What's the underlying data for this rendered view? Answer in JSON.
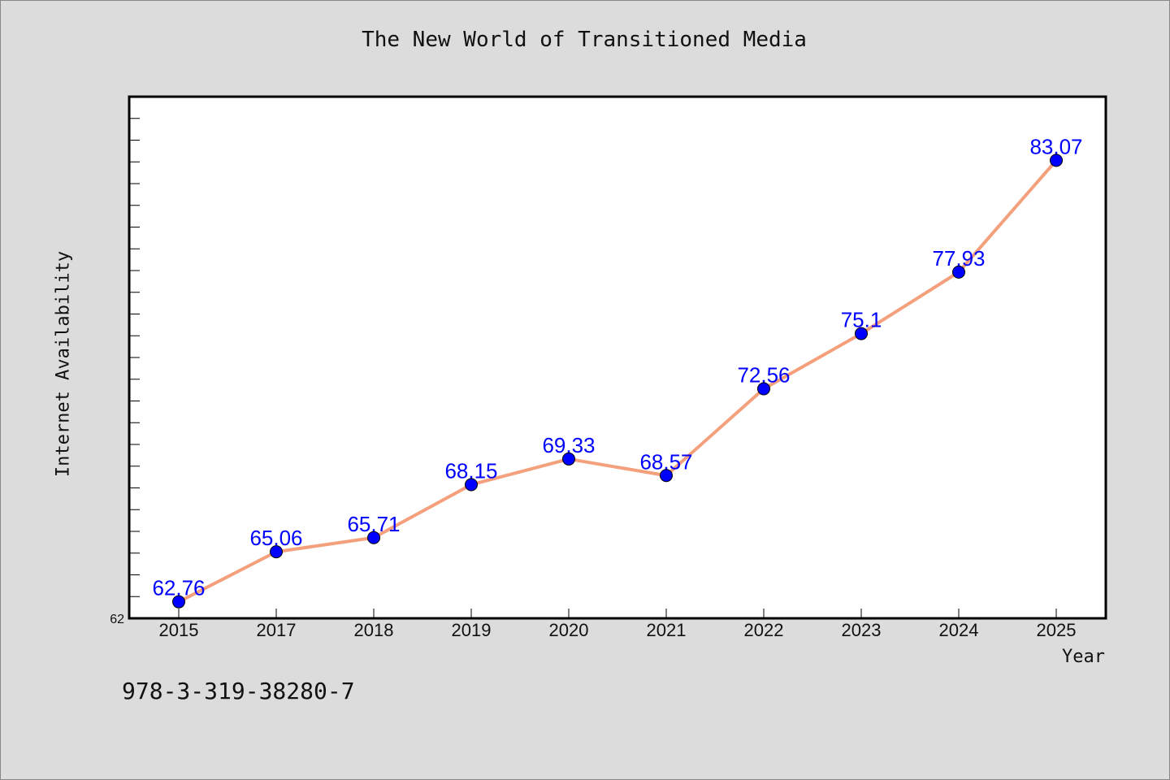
{
  "chart_data": {
    "type": "line",
    "title": "The New World of Transitioned Media",
    "xlabel": "Year",
    "ylabel": "Internet Availability",
    "categories": [
      "2015",
      "2017",
      "2018",
      "2019",
      "2020",
      "2021",
      "2022",
      "2023",
      "2024",
      "2025"
    ],
    "series": [
      {
        "values": [
          62.76,
          65.06,
          65.71,
          68.15,
          69.33,
          68.57,
          72.56,
          75.1,
          77.93,
          83.07
        ],
        "data_labels": [
          "62.76",
          "65.06",
          "65.71",
          "68.15",
          "69.33",
          "68.57",
          "72.56",
          "75.1",
          "77.93",
          "83.07"
        ]
      }
    ],
    "ylim": [
      62,
      86
    ],
    "y_tick_labels": [
      "62"
    ],
    "grid": false,
    "line_color": "#f4a07c",
    "marker_color": "#0000ff",
    "label_color": "#0000ff"
  },
  "footer": {
    "isbn": "978-3-319-38280-7"
  }
}
